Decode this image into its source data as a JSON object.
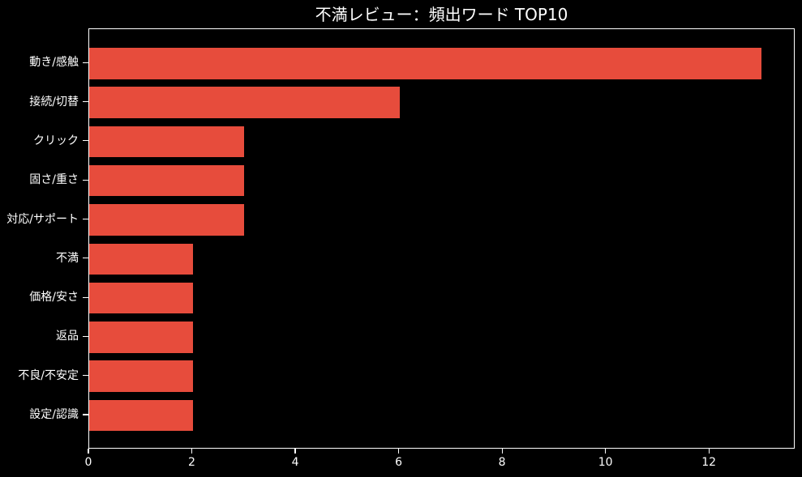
{
  "chart_data": {
    "type": "bar",
    "orientation": "horizontal",
    "title": "不満レビュー：頻出ワード TOP10",
    "categories": [
      "動き/感触",
      "接続/切替",
      "クリック",
      "固さ/重さ",
      "対応/サポート",
      "不満",
      "価格/安さ",
      "返品",
      "不良/不安定",
      "設定/認識"
    ],
    "values": [
      13,
      6,
      3,
      3,
      3,
      2,
      2,
      2,
      2,
      2
    ],
    "xlabel": "",
    "ylabel": "",
    "x_ticks": [
      "0",
      "2",
      "4",
      "6",
      "8",
      "10",
      "12"
    ],
    "x_tick_values": [
      0,
      2,
      4,
      6,
      8,
      10,
      12
    ],
    "xlim": [
      0,
      13.66
    ],
    "grid": false,
    "legend_position": "none",
    "colors": {
      "bar": "#e74c3c",
      "background": "#000000",
      "text": "#ffffff",
      "spine": "#ffffff"
    }
  }
}
